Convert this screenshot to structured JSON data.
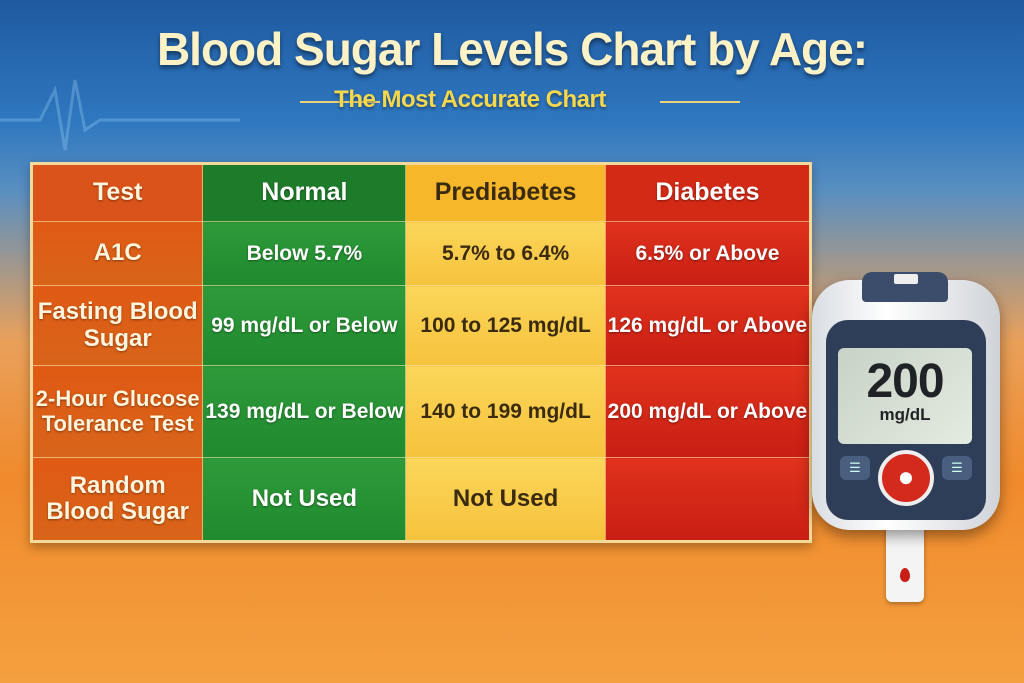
{
  "header": {
    "title": "Blood Sugar Levels Chart by Age:",
    "subtitle": "The Most Accurate Chart"
  },
  "table": {
    "headers": [
      "Test",
      "Normal",
      "Prediabetes",
      "Diabetes"
    ],
    "rows": [
      {
        "test": "A1C",
        "normal": "Below 5.7%",
        "prediabetes": "5.7% to 6.4%",
        "diabetes": "6.5% or Above"
      },
      {
        "test": "Fasting Blood Sugar",
        "normal": "99 mg/dL or Below",
        "prediabetes": "100 to 125 mg/dL",
        "diabetes": "126 mg/dL or Above"
      },
      {
        "test": "2-Hour Glucose Tolerance Test",
        "normal": "139 mg/dL or Below",
        "prediabetes": "140 to 199 mg/dL",
        "diabetes": "200 mg/dL or Above"
      },
      {
        "test": "Random Blood Sugar",
        "normal": "Not Used",
        "prediabetes": "Not Used",
        "diabetes": ""
      }
    ]
  },
  "meter": {
    "value": "200",
    "unit": "mg/dL",
    "icons": [
      "blood-drop-icon",
      "menu-button-icon"
    ]
  },
  "colors": {
    "normal": "#1f8a2e",
    "prediabetes": "#f6c23c",
    "diabetes": "#c81e14",
    "test": "#d9531a"
  }
}
